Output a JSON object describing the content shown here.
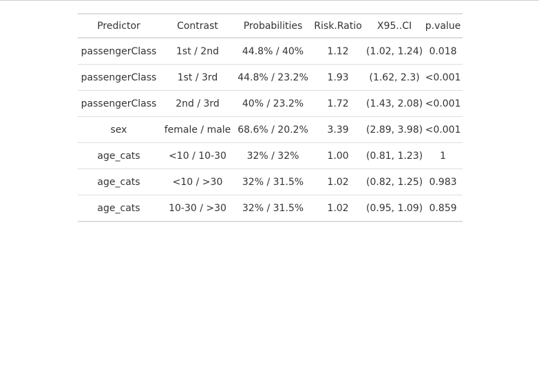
{
  "table": {
    "headers": [
      "Predictor",
      "Contrast",
      "Probabilities",
      "Risk.Ratio",
      "X95..CI",
      "p.value"
    ],
    "rows": [
      [
        "passengerClass",
        "1st / 2nd",
        "44.8% / 40%",
        "1.12",
        "(1.02, 1.24)",
        "0.018"
      ],
      [
        "passengerClass",
        "1st / 3rd",
        "44.8% / 23.2%",
        "1.93",
        "(1.62, 2.3)",
        "<0.001"
      ],
      [
        "passengerClass",
        "2nd / 3rd",
        "40% / 23.2%",
        "1.72",
        "(1.43, 2.08)",
        "<0.001"
      ],
      [
        "sex",
        "female / male",
        "68.6% / 20.2%",
        "3.39",
        "(2.89, 3.98)",
        "<0.001"
      ],
      [
        "age_cats",
        "<10 / 10-30",
        "32% / 32%",
        "1.00",
        "(0.81, 1.23)",
        "1"
      ],
      [
        "age_cats",
        "<10 / >30",
        "32% / 31.5%",
        "1.02",
        "(0.82, 1.25)",
        "0.983"
      ],
      [
        "age_cats",
        "10-30 / >30",
        "32% / 31.5%",
        "1.02",
        "(0.95, 1.09)",
        "0.859"
      ]
    ]
  },
  "colors": {
    "text": "#333333",
    "rule": "#dddddd",
    "background": "#ffffff"
  }
}
